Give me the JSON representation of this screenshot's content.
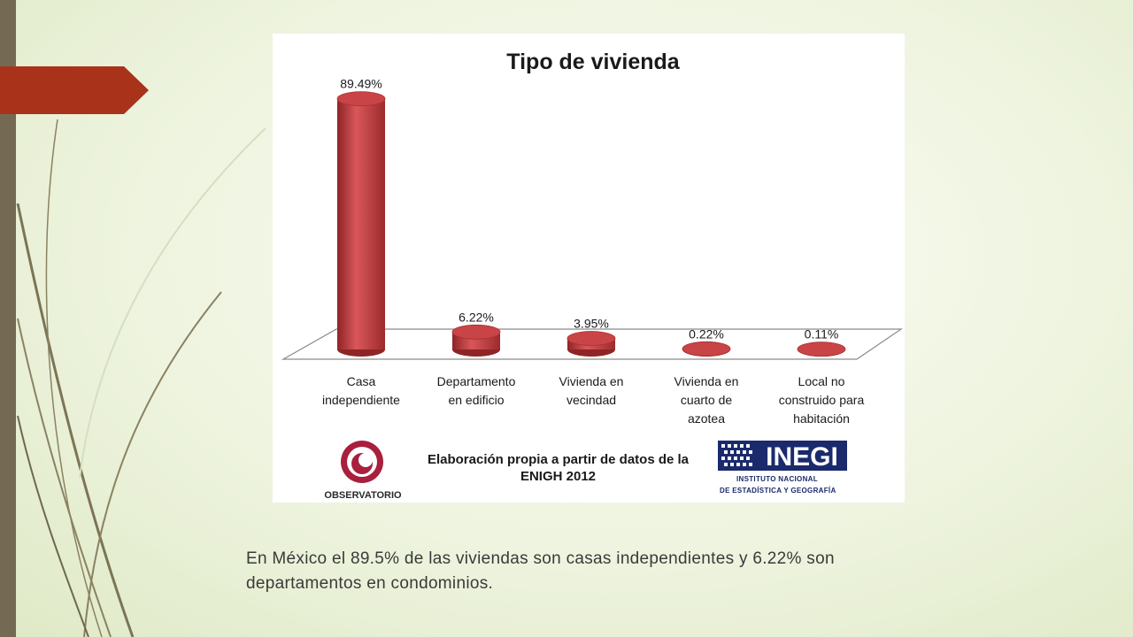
{
  "chart_data": {
    "type": "bar",
    "title": "Tipo de vivienda",
    "categories": [
      [
        "Casa",
        "independiente"
      ],
      [
        "Departamento",
        "en edificio"
      ],
      [
        "Vivienda en",
        "vecindad"
      ],
      [
        "Vivienda en",
        "cuarto de",
        "azotea"
      ],
      [
        "Local no",
        "construido para",
        "habitación"
      ]
    ],
    "values": [
      89.49,
      6.22,
      3.95,
      0.22,
      0.11
    ],
    "value_labels": [
      "89.49%",
      "6.22%",
      "3.95%",
      "0.22%",
      "0.11%"
    ],
    "ylim": [
      0,
      90
    ],
    "bar_color": "#c0393b",
    "grid": false,
    "legend": "none",
    "style": "3d-cylinder"
  },
  "source_note": "Elaboración propia a partir de datos de la ENIGH 2012",
  "logos": {
    "observatorio": "OBSERVATORIO",
    "inegi_main": "INEGI",
    "inegi_line1": "INSTITUTO NACIONAL",
    "inegi_line2": "DE ESTADÍSTICA Y GEOGRAFÍA"
  },
  "caption": "En México el 89.5% de las viviendas son casas independientes y 6.22% son departamentos en condominios.",
  "colors": {
    "accent": "#a8321a",
    "sidebar": "#746a53",
    "background": "#eef4df"
  }
}
